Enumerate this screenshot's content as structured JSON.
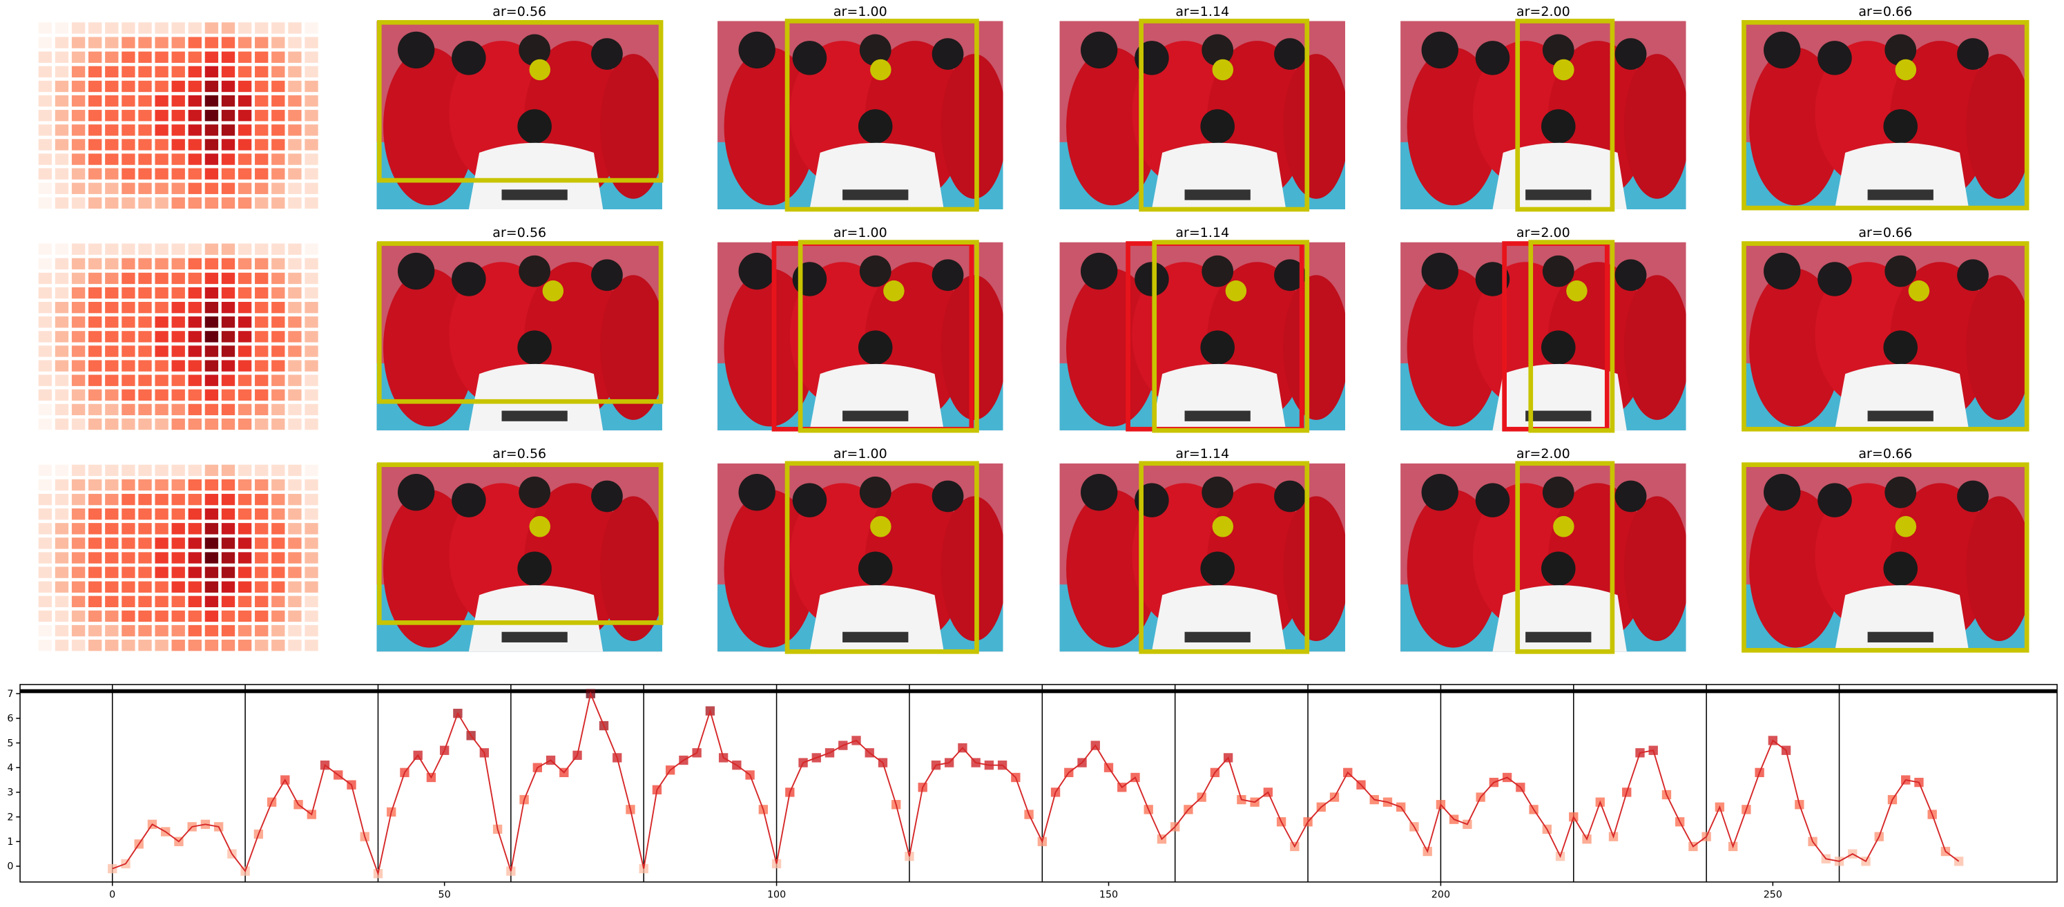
{
  "panels": {
    "rows": [
      {
        "titles": [
          "ar=0.56",
          "ar=1.00",
          "ar=1.14",
          "ar=2.00",
          "ar=0.66"
        ]
      },
      {
        "titles": [
          "ar=0.56",
          "ar=1.00",
          "ar=1.14",
          "ar=2.00",
          "ar=0.66"
        ]
      },
      {
        "titles": [
          "ar=0.56",
          "ar=1.00",
          "ar=1.14",
          "ar=2.00",
          "ar=0.66"
        ]
      }
    ],
    "heatmap": [
      [
        0,
        0,
        1,
        1,
        1,
        1,
        1,
        1,
        1,
        1,
        2,
        2,
        1,
        1,
        1,
        1,
        0
      ],
      [
        0,
        1,
        2,
        2,
        2,
        3,
        3,
        3,
        3,
        4,
        4,
        4,
        3,
        3,
        2,
        1,
        1
      ],
      [
        1,
        1,
        2,
        3,
        3,
        4,
        4,
        4,
        4,
        5,
        6,
        6,
        5,
        4,
        3,
        2,
        1
      ],
      [
        1,
        1,
        3,
        4,
        4,
        4,
        4,
        5,
        5,
        6,
        7,
        6,
        5,
        4,
        3,
        2,
        1
      ],
      [
        1,
        2,
        3,
        4,
        4,
        5,
        5,
        5,
        6,
        6,
        8,
        7,
        6,
        5,
        4,
        2,
        2
      ],
      [
        1,
        2,
        3,
        5,
        5,
        5,
        5,
        6,
        6,
        7,
        9,
        8,
        7,
        5,
        4,
        3,
        2
      ],
      [
        1,
        2,
        3,
        5,
        5,
        5,
        5,
        6,
        6,
        7,
        9,
        8,
        7,
        5,
        4,
        3,
        2
      ],
      [
        1,
        2,
        3,
        4,
        5,
        5,
        5,
        6,
        6,
        7,
        8,
        8,
        6,
        5,
        4,
        3,
        2
      ],
      [
        1,
        2,
        3,
        4,
        4,
        5,
        5,
        5,
        6,
        6,
        8,
        7,
        6,
        5,
        4,
        2,
        2
      ],
      [
        1,
        1,
        3,
        4,
        4,
        4,
        4,
        5,
        5,
        6,
        7,
        6,
        5,
        4,
        3,
        2,
        1
      ],
      [
        1,
        1,
        2,
        3,
        3,
        4,
        4,
        4,
        4,
        5,
        6,
        5,
        4,
        4,
        3,
        2,
        1
      ],
      [
        0,
        1,
        2,
        2,
        2,
        3,
        3,
        3,
        3,
        4,
        4,
        4,
        3,
        3,
        2,
        1,
        1
      ],
      [
        0,
        1,
        1,
        2,
        2,
        2,
        2,
        2,
        3,
        3,
        3,
        3,
        3,
        2,
        2,
        1,
        1
      ]
    ]
  },
  "chart_data": {
    "type": "line",
    "color": "#d62728",
    "x": [
      0,
      2,
      4,
      6,
      8,
      10,
      12,
      14,
      16,
      18,
      20,
      22,
      24,
      26,
      28,
      30,
      32,
      34,
      36,
      38,
      40,
      42,
      44,
      46,
      48,
      50,
      52,
      54,
      56,
      58,
      60,
      62,
      64,
      66,
      68,
      70,
      72,
      74,
      76,
      78,
      80,
      82,
      84,
      86,
      88,
      90,
      92,
      94,
      96,
      98,
      100,
      102,
      104,
      106,
      108,
      110,
      112,
      114,
      116,
      118,
      120,
      122,
      124,
      126,
      128,
      130,
      132,
      134,
      136,
      138,
      140,
      142,
      144,
      146,
      148,
      150,
      152,
      154,
      156,
      158,
      160,
      162,
      164,
      166,
      168,
      170,
      172,
      174,
      176,
      178,
      180,
      182,
      184,
      186,
      188,
      190,
      192,
      194,
      196,
      198,
      200,
      202,
      204,
      206,
      208,
      210,
      212,
      214,
      216,
      218,
      220,
      222,
      224,
      226,
      228,
      230,
      232,
      234,
      236,
      238,
      240,
      242,
      244,
      246,
      248,
      250,
      252,
      254,
      256,
      258,
      260,
      262,
      264,
      266,
      268,
      270,
      272,
      274,
      276,
      278
    ],
    "values": [
      -0.1,
      0.1,
      0.9,
      1.7,
      1.4,
      1.0,
      1.6,
      1.7,
      1.6,
      0.5,
      -0.2,
      1.3,
      2.6,
      3.5,
      2.5,
      2.1,
      4.1,
      3.7,
      3.3,
      1.2,
      -0.3,
      2.2,
      3.8,
      4.5,
      3.6,
      4.7,
      6.2,
      5.3,
      4.6,
      1.5,
      -0.2,
      2.7,
      4.0,
      4.3,
      3.8,
      4.5,
      7.0,
      5.7,
      4.4,
      2.3,
      -0.1,
      3.1,
      3.9,
      4.3,
      4.6,
      6.3,
      4.4,
      4.1,
      3.7,
      2.3,
      0.1,
      3.0,
      4.2,
      4.4,
      4.6,
      4.9,
      5.1,
      4.6,
      4.2,
      2.5,
      0.4,
      3.2,
      4.1,
      4.2,
      4.8,
      4.2,
      4.1,
      4.1,
      3.6,
      2.1,
      1.0,
      3.0,
      3.8,
      4.2,
      4.9,
      4.0,
      3.2,
      3.6,
      2.3,
      1.1,
      1.6,
      2.3,
      2.8,
      3.8,
      4.4,
      2.7,
      2.6,
      3.0,
      1.8,
      0.8,
      1.8,
      2.4,
      2.8,
      3.8,
      3.3,
      2.7,
      2.6,
      2.4,
      1.6,
      0.6,
      2.5,
      1.9,
      1.7,
      2.8,
      3.4,
      3.6,
      3.2,
      2.3,
      1.5,
      0.4,
      2.0,
      1.1,
      2.6,
      1.2,
      3.0,
      4.6,
      4.7,
      2.9,
      1.8,
      0.8,
      1.2,
      2.4,
      0.8,
      2.3,
      3.8,
      5.1,
      4.7,
      2.5,
      1.0,
      0.3,
      0.2,
      0.5,
      0.2,
      1.2,
      2.7,
      3.5,
      3.4,
      2.1,
      0.6,
      0.2
    ],
    "xlim": [
      -13.9,
      292.8
    ],
    "ylim": [
      -0.64,
      7.37
    ],
    "xticks": [
      0,
      50,
      100,
      150,
      200,
      250
    ],
    "yticks": [
      0,
      1,
      2,
      3,
      4,
      5,
      6,
      7
    ],
    "vlines": [
      0,
      20,
      40,
      60,
      80,
      100,
      120,
      140,
      160,
      180,
      200,
      220,
      240,
      260
    ],
    "hline": 7.1
  }
}
